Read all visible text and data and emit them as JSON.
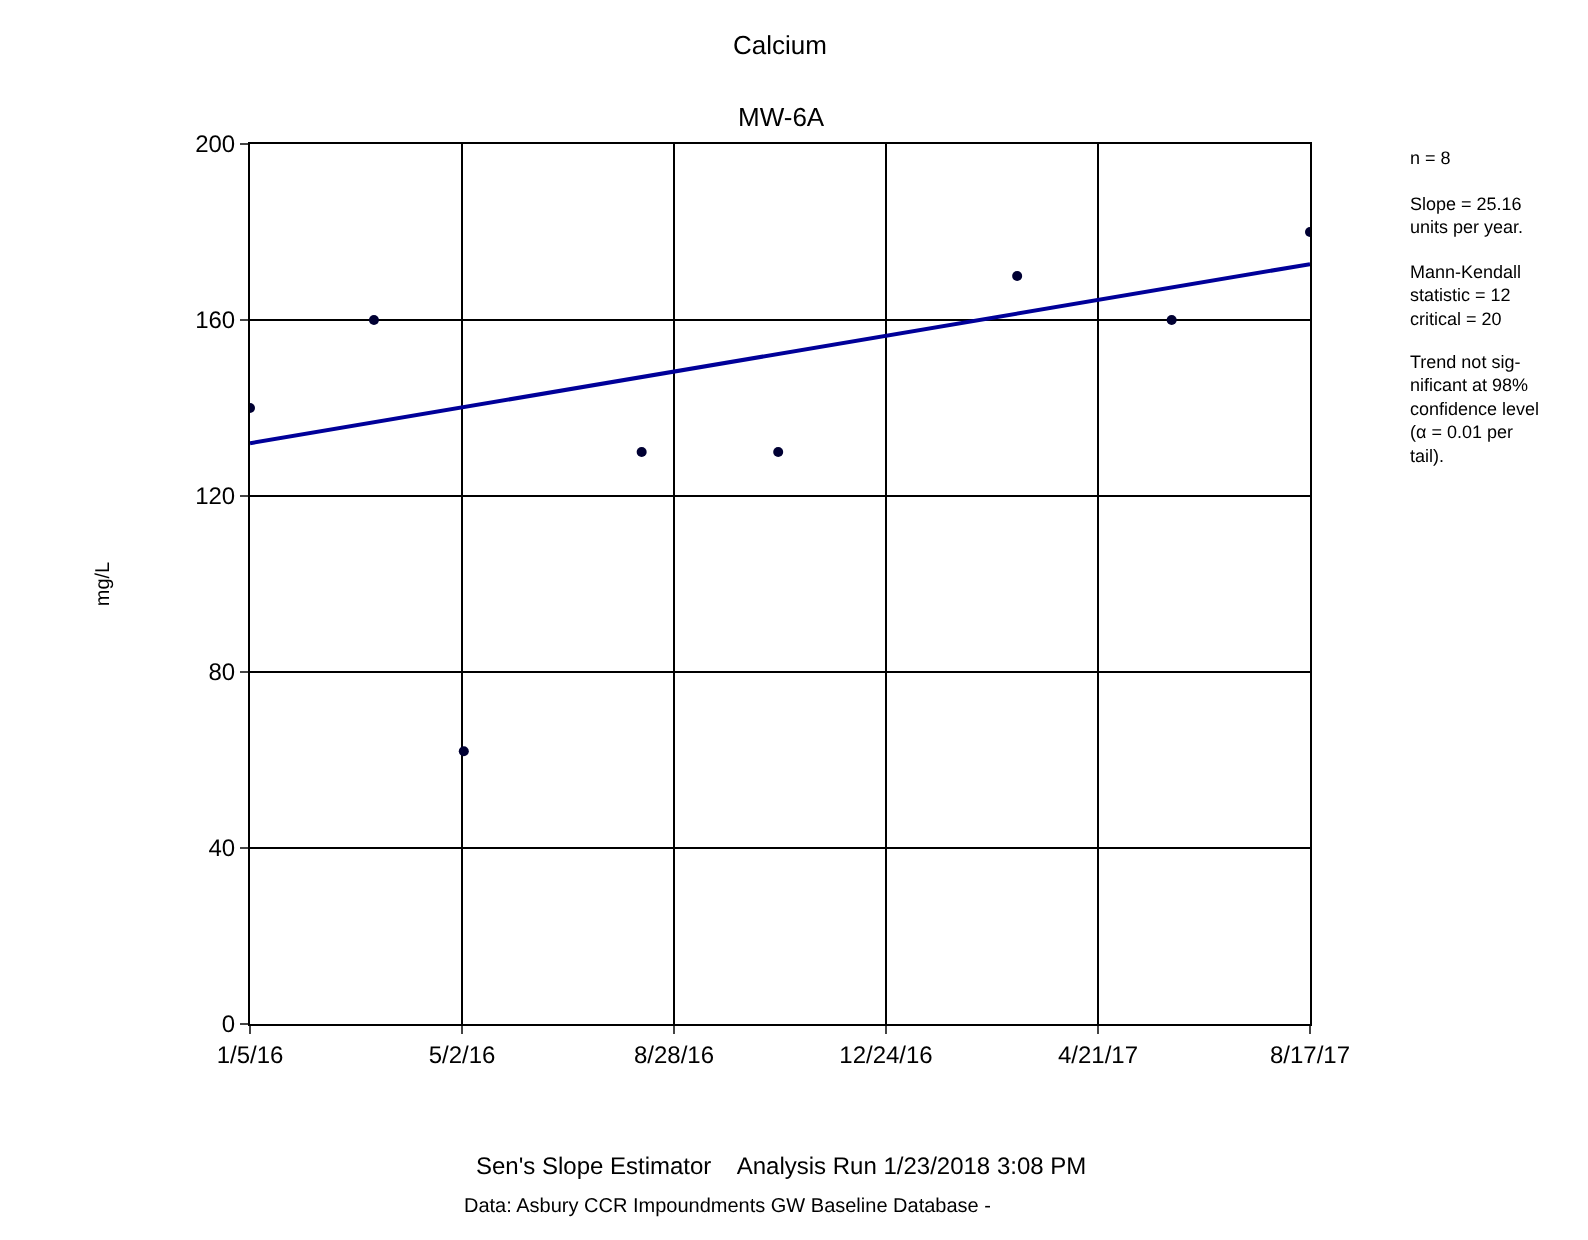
{
  "chart_data": {
    "type": "scatter",
    "title": "Calcium",
    "subtitle": "MW-6A",
    "ylabel": "mg/L",
    "series": [
      {
        "type": "scatter",
        "marker": "circle",
        "color": "#000033",
        "x": [
          "2016-01-05",
          "2016-03-14",
          "2016-05-03",
          "2016-08-10",
          "2016-10-25",
          "2017-03-07",
          "2017-06-01",
          "2017-08-17"
        ],
        "values": [
          140,
          160,
          62,
          130,
          130,
          170,
          160,
          180
        ]
      },
      {
        "type": "line",
        "marker": "none",
        "color": "#000099",
        "x": [
          "2016-01-05",
          "2017-08-17"
        ],
        "values": [
          132,
          172.7
        ]
      }
    ],
    "xlim": [
      "2016-01-05",
      "2017-08-17"
    ],
    "xticks": [
      {
        "value": "2016-01-05",
        "label": "1/5/16"
      },
      {
        "value": "2016-05-02",
        "label": "5/2/16"
      },
      {
        "value": "2016-08-28",
        "label": "8/28/16"
      },
      {
        "value": "2016-12-24",
        "label": "12/24/16"
      },
      {
        "value": "2017-04-21",
        "label": "4/21/17"
      },
      {
        "value": "2017-08-17",
        "label": "8/17/17"
      }
    ],
    "ylim": [
      0,
      200
    ],
    "yticks": [
      0,
      40,
      80,
      120,
      160,
      200
    ],
    "grid": true,
    "line_style": "solid",
    "annotations": [
      "n = 8",
      "Slope = 25.16\nunits per year.",
      "Mann-Kendall\nstatistic = 12\ncritical = 20",
      "Trend not sig-\nnificant at 98%\nconfidence level\n(α = 0.01 per\ntail).",
      "Sen's Slope Estimator    Analysis Run 1/23/2018 3:08 PM",
      "Data: Asbury CCR Impoundments GW Baseline Database -"
    ]
  }
}
